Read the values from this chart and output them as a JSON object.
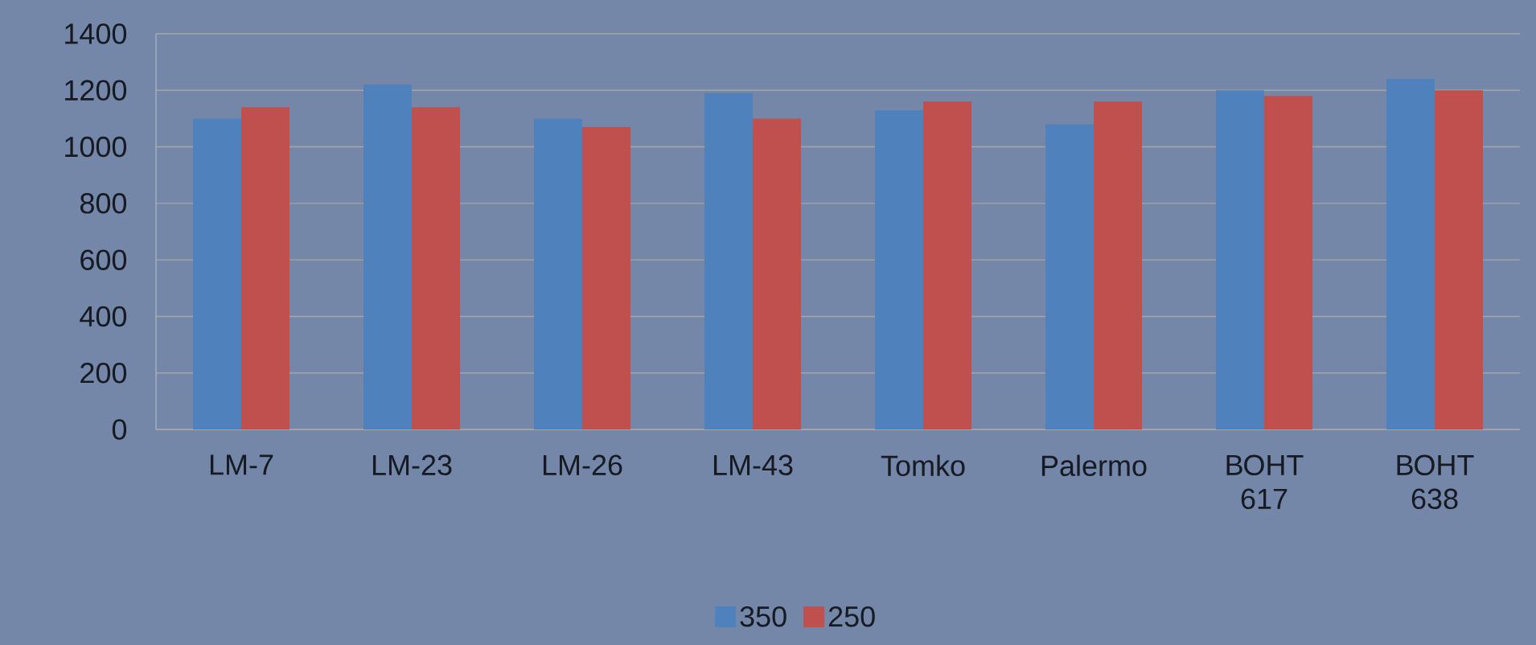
{
  "chart_data": {
    "type": "bar",
    "categories": [
      "LM-7",
      "LM-23",
      "LM-26",
      "LM-43",
      "Tomko",
      "Palermo",
      "ВОНТ 617",
      "ВОНТ 638"
    ],
    "series": [
      {
        "name": "350",
        "color": "#4f81bd",
        "values": [
          1100,
          1220,
          1100,
          1190,
          1130,
          1080,
          1200,
          1240
        ]
      },
      {
        "name": "250",
        "color": "#c0504d",
        "values": [
          1140,
          1140,
          1070,
          1100,
          1160,
          1160,
          1180,
          1200
        ]
      }
    ],
    "ylim": [
      0,
      1400
    ],
    "yticks": [
      0,
      200,
      400,
      600,
      800,
      1000,
      1200,
      1400
    ],
    "grid": "y",
    "legend": "bottom"
  }
}
